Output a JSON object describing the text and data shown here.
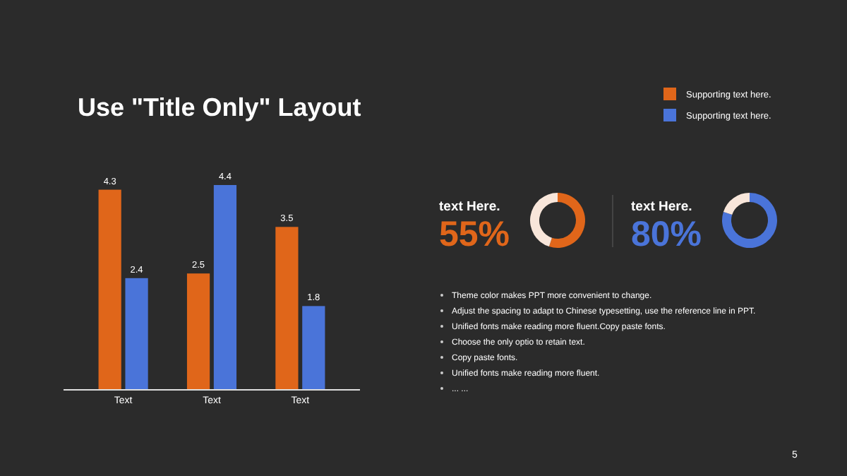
{
  "chart_data": [
    {
      "type": "bar",
      "title": "Use \"Title Only\" Layout",
      "categories": [
        "Text",
        "Text",
        "Text"
      ],
      "series": [
        {
          "name": "Supporting text here.",
          "color": "#e0661a",
          "values": [
            4.3,
            2.5,
            3.5
          ]
        },
        {
          "name": "Supporting text here.",
          "color": "#4a74d9",
          "values": [
            2.4,
            4.4,
            1.8
          ]
        }
      ],
      "data_labels": true,
      "legend": "top right"
    },
    {
      "type": "donut",
      "title": "text Here.",
      "categories": [
        null,
        null
      ],
      "values": [
        55,
        45
      ],
      "colors": [
        "#e0661a",
        "#f8e6da"
      ],
      "annotations": [
        "55%"
      ]
    },
    {
      "type": "donut",
      "title": "text Here.",
      "categories": [
        null,
        null
      ],
      "values": [
        80,
        20
      ],
      "colors": [
        "#4a74d9",
        "#f8e6da"
      ],
      "annotations": [
        "80%"
      ]
    },
    {
      "type": "other",
      "annotations": [
        "Theme  color makes PPT more convenient to change.",
        "Adjust the spacing to adapt to Chinese typesetting, use the reference line in PPT.",
        "Unified fonts make reading more fluent.Copy paste fonts.",
        "Choose the only optio to retain text.",
        "Copy paste  fonts.",
        "Unified fonts make reading more fluent.",
        "... ...",
        "5"
      ]
    }
  ]
}
